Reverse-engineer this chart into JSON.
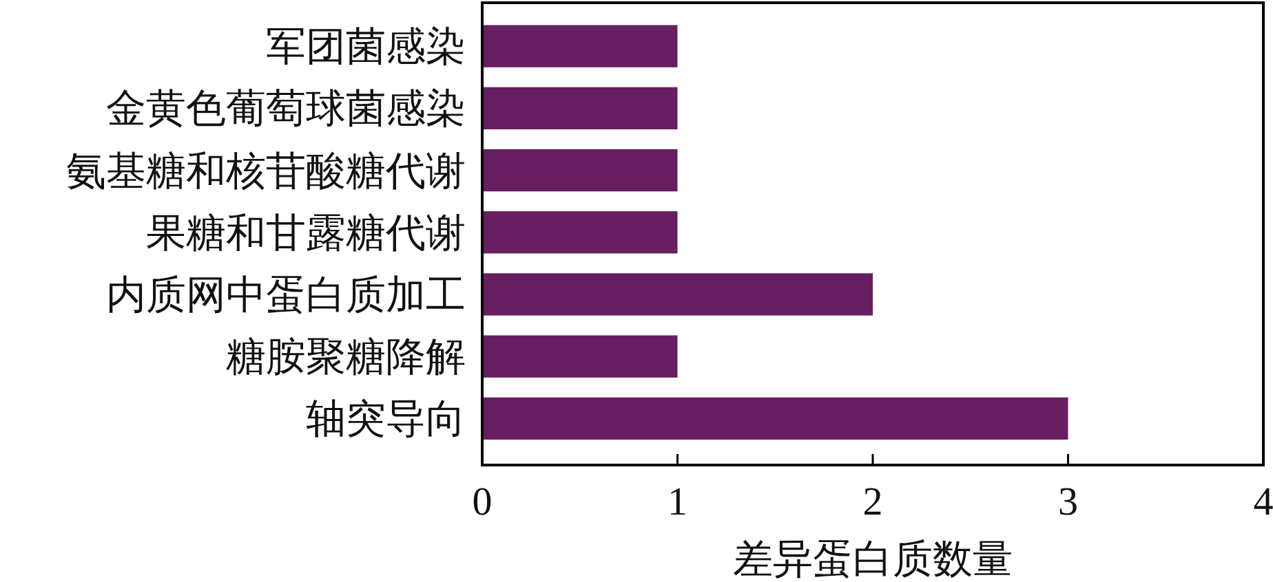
{
  "chart_data": {
    "type": "bar",
    "orientation": "horizontal",
    "categories": [
      "军团菌感染",
      "金黄色葡萄球菌感染",
      "氨基糖和核苷酸糖代谢",
      "果糖和甘露糖代谢",
      "内质网中蛋白质加工",
      "糖胺聚糖降解",
      "轴突导向"
    ],
    "values": [
      1,
      1,
      1,
      1,
      2,
      1,
      3
    ],
    "color": "#681f62",
    "xlim": [
      0,
      4
    ],
    "xticks": [
      0,
      1,
      2,
      3,
      4
    ],
    "xlabel": "差异蛋白质数量"
  }
}
